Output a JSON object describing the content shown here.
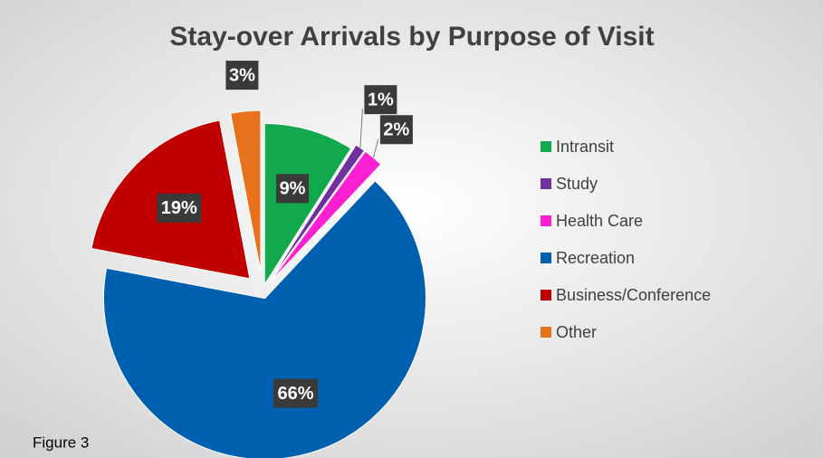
{
  "chart_data": {
    "type": "pie",
    "title": "Stay-over Arrivals by Purpose of Visit",
    "categories": [
      "Intransit",
      "Study",
      "Health Care",
      "Recreation",
      "Business/Conference",
      "Other"
    ],
    "values": [
      9,
      1,
      2,
      66,
      19,
      3
    ],
    "value_labels": [
      "9%",
      "1%",
      "2%",
      "66%",
      "19%",
      "3%"
    ],
    "colors": [
      "#12a84e",
      "#7030a0",
      "#ff1fd2",
      "#0060b0",
      "#c00000",
      "#e8721c"
    ],
    "legend": "right",
    "annotation": "Figure 3"
  }
}
